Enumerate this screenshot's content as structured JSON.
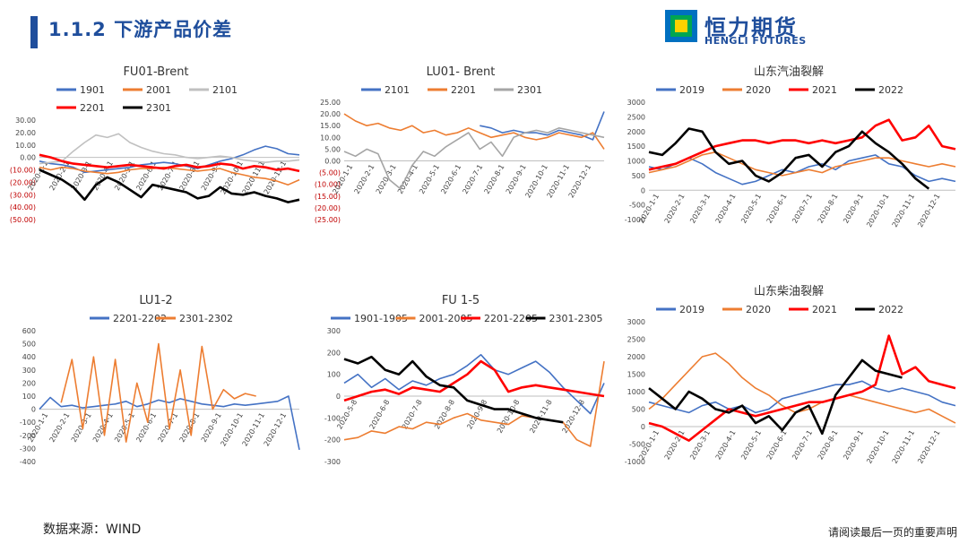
{
  "header": {
    "title": "1.1.2 下游产品价差"
  },
  "logo": {
    "cn": "恒力期货",
    "en": "HENGLI FUTURES"
  },
  "footer": {
    "source": "数据来源：WIND",
    "disclaimer": "请阅读最后一页的重要声明"
  },
  "chart_data": [
    {
      "id": "fu01-brent",
      "type": "line",
      "title": "FU01-Brent",
      "xlabel": "",
      "ylabel": "",
      "ylim": [
        -50,
        30
      ],
      "y_ticks": [
        30,
        20,
        10,
        0,
        -10,
        -20,
        -30,
        -40,
        -50
      ],
      "y_tick_labels": [
        "30.00",
        "20.00",
        "10.00",
        "0.00",
        "(10.00)",
        "(20.00)",
        "(30.00)",
        "(40.00)",
        "(50.00)"
      ],
      "x_tick_labels": [
        "2020-1-1",
        "2020-2-1",
        "2020-3-1",
        "2020-4-1",
        "2020-5-1",
        "2020-6-1",
        "2020-7-1",
        "2020-8-1",
        "2020-9-1",
        "2020-10-1",
        "2020-11-1",
        "2020-12-1"
      ],
      "legend": "top",
      "series": [
        {
          "name": "1901",
          "color": "#4472c4",
          "values": [
            -3,
            -5,
            -6,
            -8,
            -12,
            -11,
            -10,
            -9,
            -8,
            -6,
            -5,
            -4,
            -5,
            -7,
            -9,
            -6,
            -3,
            -1,
            2,
            6,
            9,
            7,
            3,
            2
          ]
        },
        {
          "name": "2001",
          "color": "#ed7d31",
          "values": [
            -8,
            -10,
            -8,
            -9,
            -11,
            -12,
            -13,
            -12,
            -10,
            -9,
            -9,
            -8,
            -9,
            -10,
            -11,
            -10,
            -9,
            -12,
            -14,
            -16,
            -17,
            -19,
            -22,
            -18
          ]
        },
        {
          "name": "2101",
          "color": "#c0c0c0",
          "values": [
            -5,
            -4,
            -3,
            5,
            12,
            18,
            16,
            19,
            12,
            8,
            5,
            3,
            2,
            0,
            -1,
            0,
            1,
            0,
            -2,
            -3,
            -4,
            -3,
            -3,
            -2
          ]
        },
        {
          "name": "2201",
          "color": "#ff0000",
          "values": [
            2,
            0,
            -3,
            -5,
            -6,
            -7,
            -8,
            -7,
            -6,
            -7,
            -8,
            -9,
            -7,
            -6,
            -8,
            -7,
            -5,
            -6,
            -9,
            -7,
            -8,
            -10,
            -9,
            -11
          ]
        },
        {
          "name": "2301",
          "color": "#000000",
          "values": [
            -10,
            -14,
            -18,
            -24,
            -34,
            -22,
            -16,
            -20,
            -26,
            -32,
            -22,
            -24,
            -26,
            -28,
            -33,
            -31,
            -24,
            -29,
            -30,
            -28,
            -31,
            -33,
            -36,
            -34
          ]
        }
      ]
    },
    {
      "id": "lu01-brent",
      "type": "line",
      "title": "LU01- Brent",
      "xlabel": "",
      "ylabel": "",
      "ylim": [
        -25,
        25
      ],
      "y_ticks": [
        25,
        20,
        15,
        10,
        5,
        0,
        -5,
        -10,
        -15,
        -20,
        -25
      ],
      "y_tick_labels": [
        "25.00",
        "20.00",
        "15.00",
        "10.00",
        "5.00",
        "0.00",
        "(5.00)",
        "(10.00)",
        "(15.00)",
        "(20.00)",
        "(25.00)"
      ],
      "x_tick_labels": [
        "2020-1-1",
        "2020-2-1",
        "2020-3-1",
        "2020-4-1",
        "2020-5-1",
        "2020-6-1",
        "2020-7-1",
        "2020-8-1",
        "2020-9-1",
        "2020-10-1",
        "2020-11-1",
        "2020-12-1"
      ],
      "legend": "top",
      "series": [
        {
          "name": "2101",
          "color": "#4472c4",
          "values": [
            null,
            null,
            null,
            null,
            null,
            null,
            null,
            null,
            null,
            null,
            null,
            null,
            15,
            14,
            12,
            13,
            12,
            12,
            11,
            13,
            12,
            11,
            9,
            21
          ]
        },
        {
          "name": "2201",
          "color": "#ed7d31",
          "values": [
            20,
            17,
            15,
            16,
            14,
            13,
            15,
            12,
            13,
            11,
            12,
            14,
            12,
            10,
            11,
            12,
            10,
            9,
            10,
            12,
            11,
            10,
            12,
            5
          ]
        },
        {
          "name": "2301",
          "color": "#a5a5a5",
          "values": [
            4,
            2,
            5,
            3,
            -8,
            -12,
            -2,
            4,
            2,
            6,
            9,
            12,
            5,
            8,
            2,
            10,
            12,
            13,
            12,
            14,
            13,
            12,
            11,
            10
          ]
        }
      ]
    },
    {
      "id": "shandong-gasoline",
      "type": "line",
      "title": "山东汽油裂解",
      "xlabel": "",
      "ylabel": "",
      "ylim": [
        -1000,
        3000
      ],
      "y_ticks": [
        3000,
        2500,
        2000,
        1500,
        1000,
        500,
        0,
        -500,
        -1000
      ],
      "y_tick_labels": [
        "3000",
        "2500",
        "2000",
        "1500",
        "1000",
        "500",
        "0",
        "-500",
        "-1000"
      ],
      "x_tick_labels": [
        "2020-1-1",
        "2020-2-1",
        "2020-3-1",
        "2020-4-1",
        "2020-5-1",
        "2020-6-1",
        "2020-7-1",
        "2020-8-1",
        "2020-9-1",
        "2020-10-1",
        "2020-11-1",
        "2020-12-1"
      ],
      "legend": "top",
      "series": [
        {
          "name": "2019",
          "color": "#4472c4",
          "values": [
            800,
            700,
            900,
            1100,
            900,
            600,
            400,
            200,
            300,
            500,
            700,
            600,
            800,
            900,
            700,
            1000,
            1100,
            1200,
            900,
            800,
            500,
            300,
            400,
            300
          ]
        },
        {
          "name": "2020",
          "color": "#ed7d31",
          "values": [
            600,
            700,
            800,
            1000,
            1200,
            1300,
            1100,
            900,
            700,
            600,
            500,
            600,
            700,
            600,
            800,
            900,
            1000,
            1100,
            1100,
            1000,
            900,
            800,
            900,
            800
          ]
        },
        {
          "name": "2021",
          "color": "#ff0000",
          "values": [
            700,
            800,
            900,
            1100,
            1300,
            1500,
            1600,
            1700,
            1700,
            1600,
            1700,
            1700,
            1600,
            1700,
            1600,
            1700,
            1800,
            2200,
            2400,
            1700,
            1800,
            2200,
            1500,
            1400
          ]
        },
        {
          "name": "2022",
          "color": "#000000",
          "values": [
            1300,
            1200,
            1600,
            2100,
            2000,
            1300,
            900,
            1000,
            500,
            300,
            600,
            1100,
            1200,
            800,
            1300,
            1500,
            2000,
            1600,
            1300,
            900,
            400,
            50,
            null,
            null
          ]
        }
      ]
    },
    {
      "id": "lu1-2",
      "type": "line",
      "title": "LU1-2",
      "xlabel": "",
      "ylabel": "",
      "ylim": [
        -400,
        600
      ],
      "y_ticks": [
        600,
        500,
        400,
        300,
        200,
        100,
        0,
        -100,
        -200,
        -300,
        -400
      ],
      "y_tick_labels": [
        "600",
        "500",
        "400",
        "300",
        "200",
        "100",
        "0",
        "-100",
        "-200",
        "-300",
        "-400"
      ],
      "x_tick_labels": [
        "2020-1-1",
        "2020-2-1",
        "2020-3-1",
        "2020-4-1",
        "2020-5-1",
        "2020-6-1",
        "2020-7-1",
        "2020-8-1",
        "2020-9-1",
        "2020-10-1",
        "2020-11-1",
        "2020-12-1"
      ],
      "legend": "top",
      "series": [
        {
          "name": "2201-2202",
          "color": "#4472c4",
          "values": [
            0,
            90,
            20,
            30,
            10,
            20,
            30,
            40,
            60,
            20,
            40,
            70,
            50,
            80,
            60,
            40,
            30,
            20,
            40,
            30,
            40,
            50,
            60,
            100,
            -310
          ]
        },
        {
          "name": "2301-2302",
          "color": "#ed7d31",
          "values": [
            null,
            null,
            50,
            380,
            -150,
            400,
            -200,
            380,
            -250,
            200,
            -100,
            500,
            -150,
            300,
            -200,
            480,
            0,
            150,
            80,
            120,
            100,
            null,
            null,
            null,
            null
          ]
        }
      ]
    },
    {
      "id": "fu1-5",
      "type": "line",
      "title": "FU 1-5",
      "xlabel": "",
      "ylabel": "",
      "ylim": [
        -300,
        300
      ],
      "y_ticks": [
        300,
        200,
        100,
        0,
        -100,
        -200,
        -300
      ],
      "y_tick_labels": [
        "300",
        "200",
        "100",
        "0",
        "-100",
        "-200",
        "-300"
      ],
      "x_tick_labels": [
        "2020-5-8",
        "2020-6-8",
        "2020-7-8",
        "2020-8-8",
        "2020-9-8",
        "2020-10-8",
        "2020-11-8",
        "2020-12-8"
      ],
      "legend": "top",
      "series": [
        {
          "name": "1901-1905",
          "color": "#4472c4",
          "values": [
            60,
            100,
            40,
            80,
            30,
            70,
            50,
            80,
            100,
            140,
            190,
            120,
            100,
            130,
            160,
            110,
            40,
            -20,
            -80,
            60
          ]
        },
        {
          "name": "2001-2005",
          "color": "#ed7d31",
          "values": [
            -200,
            -190,
            -160,
            -170,
            -140,
            -150,
            -120,
            -130,
            -100,
            -80,
            -110,
            -120,
            -130,
            -90,
            -100,
            -110,
            -120,
            -200,
            -230,
            160
          ]
        },
        {
          "name": "2201-2205",
          "color": "#ff0000",
          "values": [
            -20,
            0,
            20,
            30,
            10,
            40,
            30,
            20,
            60,
            100,
            160,
            120,
            20,
            40,
            50,
            40,
            30,
            20,
            10,
            0
          ]
        },
        {
          "name": "2301-2305",
          "color": "#000000",
          "values": [
            170,
            150,
            180,
            120,
            100,
            160,
            90,
            50,
            40,
            -20,
            -40,
            -60,
            -60,
            -80,
            -100,
            -110,
            -120,
            null,
            null,
            null
          ]
        }
      ]
    },
    {
      "id": "shandong-diesel",
      "type": "line",
      "title": "山东柴油裂解",
      "xlabel": "",
      "ylabel": "",
      "ylim": [
        -1000,
        3000
      ],
      "y_ticks": [
        3000,
        2500,
        2000,
        1500,
        1000,
        500,
        0,
        -500,
        -1000
      ],
      "y_tick_labels": [
        "3000",
        "2500",
        "2000",
        "1500",
        "1000",
        "500",
        "0",
        "-500",
        "-1000"
      ],
      "x_tick_labels": [
        "2020-1-1",
        "2020-2-1",
        "2020-3-1",
        "2020-4-1",
        "2020-5-1",
        "2020-6-1",
        "2020-7-1",
        "2020-8-1",
        "2020-9-1",
        "2020-10-1",
        "2020-11-1",
        "2020-12-1"
      ],
      "legend": "top",
      "series": [
        {
          "name": "2019",
          "color": "#4472c4",
          "values": [
            700,
            600,
            500,
            400,
            600,
            700,
            500,
            600,
            400,
            500,
            800,
            900,
            1000,
            1100,
            1200,
            1200,
            1300,
            1100,
            1000,
            1100,
            1000,
            900,
            700,
            600
          ]
        },
        {
          "name": "2020",
          "color": "#ed7d31",
          "values": [
            500,
            800,
            1200,
            1600,
            2000,
            2100,
            1800,
            1400,
            1100,
            900,
            600,
            400,
            500,
            700,
            800,
            900,
            800,
            700,
            600,
            500,
            400,
            500,
            300,
            100
          ]
        },
        {
          "name": "2021",
          "color": "#ff0000",
          "values": [
            100,
            0,
            -200,
            -400,
            -100,
            200,
            500,
            400,
            300,
            400,
            500,
            600,
            700,
            700,
            800,
            900,
            1000,
            1200,
            2600,
            1500,
            1700,
            1300,
            1200,
            1100
          ]
        },
        {
          "name": "2022",
          "color": "#000000",
          "values": [
            1100,
            800,
            500,
            1000,
            800,
            500,
            400,
            600,
            100,
            300,
            -100,
            400,
            600,
            -200,
            900,
            1400,
            1900,
            1600,
            1500,
            1400,
            null,
            null,
            null,
            null
          ]
        }
      ]
    }
  ]
}
